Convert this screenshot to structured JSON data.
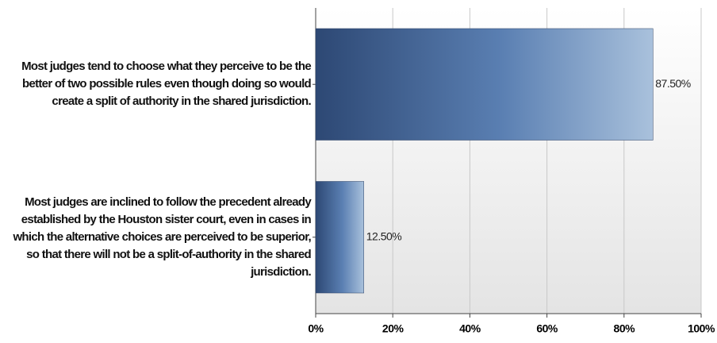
{
  "chart_data": {
    "type": "bar",
    "orientation": "horizontal",
    "categories": [
      "Most judges tend to choose what they perceive to be the better of two possible rules even though doing so would create a split of authority in the shared jurisdiction.",
      "Most judges are inclined to follow the precedent already established by the Houston sister court, even in cases in which the alternative choices are perceived to be superior, so that there will not be a split-of-authority in the shared jurisdiction."
    ],
    "values": [
      87.5,
      12.5
    ],
    "value_labels": [
      "87.50%",
      "12.50%"
    ],
    "color": "#2f5287",
    "xlim": [
      0,
      100
    ],
    "xticks": [
      {
        "value": 0,
        "label": "0%"
      },
      {
        "value": 20,
        "label": "20%"
      },
      {
        "value": 40,
        "label": "40%"
      },
      {
        "value": 60,
        "label": "60%"
      },
      {
        "value": 80,
        "label": "80%"
      },
      {
        "value": 100,
        "label": "100%"
      }
    ],
    "grid": true
  }
}
